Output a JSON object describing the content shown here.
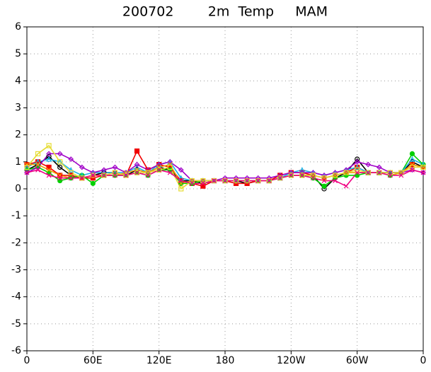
{
  "chart_data": {
    "type": "line",
    "title": "200702        2m  Temp     MAM",
    "x": [
      0,
      10,
      20,
      30,
      40,
      50,
      60,
      70,
      80,
      90,
      100,
      110,
      120,
      130,
      140,
      150,
      160,
      170,
      180,
      190,
      200,
      210,
      220,
      230,
      240,
      250,
      260,
      270,
      280,
      290,
      300,
      310,
      320,
      330,
      340,
      350,
      360
    ],
    "xlim": [
      0,
      360
    ],
    "xticks": [
      0,
      {
        "value": 60,
        "label": "60E"
      },
      {
        "value": 120,
        "label": "120E"
      },
      180,
      {
        "value": 240,
        "label": "120W"
      },
      {
        "value": 300,
        "label": "60W"
      },
      {
        "value": 360,
        "label": "0"
      }
    ],
    "ylim": [
      -6,
      6
    ],
    "yticks": [
      -6,
      -5,
      -4,
      -3,
      -2,
      -1,
      0,
      1,
      2,
      3,
      4,
      5,
      6
    ],
    "grid": true,
    "series": [
      {
        "color": "#000000",
        "marker": "circle",
        "values": [
          0.7,
          0.9,
          1.2,
          0.8,
          0.5,
          0.4,
          0.5,
          0.6,
          0.6,
          0.5,
          0.7,
          0.6,
          0.8,
          0.7,
          0.3,
          0.3,
          0.2,
          0.3,
          0.3,
          0.3,
          0.2,
          0.3,
          0.3,
          0.4,
          0.5,
          0.5,
          0.5,
          0.0,
          0.4,
          0.6,
          1.1,
          0.6,
          0.6,
          0.6,
          0.6,
          1.0,
          0.8
        ]
      },
      {
        "color": "#f00000",
        "marker": "square",
        "values": [
          0.9,
          1.0,
          0.8,
          0.5,
          0.5,
          0.4,
          0.4,
          0.5,
          0.6,
          0.5,
          1.4,
          0.7,
          0.9,
          0.8,
          0.3,
          0.2,
          0.1,
          0.3,
          0.3,
          0.2,
          0.2,
          0.3,
          0.3,
          0.5,
          0.6,
          0.6,
          0.5,
          0.4,
          0.5,
          0.6,
          0.8,
          0.6,
          0.6,
          0.6,
          0.6,
          0.9,
          0.8
        ]
      },
      {
        "color": "#00d000",
        "marker": "circle",
        "values": [
          0.7,
          0.8,
          0.6,
          0.3,
          0.4,
          0.5,
          0.2,
          0.5,
          0.5,
          0.5,
          0.6,
          0.5,
          0.7,
          0.7,
          0.2,
          0.2,
          0.3,
          0.3,
          0.3,
          0.3,
          0.3,
          0.3,
          0.3,
          0.4,
          0.5,
          0.5,
          0.4,
          0.1,
          0.4,
          0.5,
          0.5,
          0.6,
          0.6,
          0.5,
          0.6,
          1.3,
          0.9
        ]
      },
      {
        "color": "#1eb4e6",
        "marker": "triangle",
        "values": [
          0.8,
          1.0,
          1.1,
          1.0,
          0.7,
          0.5,
          0.6,
          0.6,
          0.6,
          0.6,
          0.8,
          0.6,
          0.9,
          1.0,
          0.4,
          0.3,
          0.3,
          0.3,
          0.3,
          0.3,
          0.3,
          0.3,
          0.3,
          0.4,
          0.6,
          0.7,
          0.6,
          0.5,
          0.6,
          0.7,
          0.8,
          0.6,
          0.6,
          0.6,
          0.6,
          1.1,
          0.9
        ]
      },
      {
        "color": "#a000c8",
        "marker": "diamond",
        "values": [
          0.6,
          0.8,
          1.3,
          1.3,
          1.1,
          0.8,
          0.6,
          0.7,
          0.8,
          0.6,
          0.9,
          0.7,
          0.9,
          1.0,
          0.7,
          0.3,
          0.3,
          0.3,
          0.4,
          0.4,
          0.4,
          0.4,
          0.4,
          0.5,
          0.6,
          0.6,
          0.6,
          0.5,
          0.6,
          0.7,
          1.0,
          0.9,
          0.8,
          0.6,
          0.6,
          0.7,
          0.6
        ]
      },
      {
        "color": "#f0a000",
        "marker": "cross",
        "values": [
          0.9,
          0.9,
          0.7,
          0.5,
          0.4,
          0.4,
          0.5,
          0.5,
          0.5,
          0.6,
          0.7,
          0.6,
          0.8,
          0.9,
          0.2,
          0.3,
          0.3,
          0.3,
          0.3,
          0.3,
          0.3,
          0.3,
          0.3,
          0.4,
          0.5,
          0.5,
          0.5,
          0.4,
          0.5,
          0.6,
          0.6,
          0.6,
          0.6,
          0.5,
          0.6,
          0.9,
          0.8
        ]
      },
      {
        "color": "#e6dc32",
        "marker": "square",
        "values": [
          0.8,
          1.3,
          1.6,
          1.0,
          0.6,
          0.4,
          0.5,
          0.5,
          0.6,
          0.5,
          0.6,
          0.6,
          0.7,
          0.8,
          0.0,
          0.3,
          0.3,
          0.3,
          0.3,
          0.3,
          0.3,
          0.3,
          0.3,
          0.4,
          0.5,
          0.5,
          0.5,
          0.4,
          0.5,
          0.6,
          0.7,
          0.6,
          0.6,
          0.6,
          0.6,
          0.8,
          0.8
        ]
      },
      {
        "color": "#f00082",
        "marker": "cross",
        "values": [
          0.6,
          0.7,
          0.5,
          0.4,
          0.4,
          0.4,
          0.5,
          0.5,
          0.5,
          0.5,
          0.6,
          0.5,
          0.7,
          0.6,
          0.3,
          0.2,
          0.2,
          0.3,
          0.3,
          0.3,
          0.3,
          0.3,
          0.3,
          0.4,
          0.5,
          0.5,
          0.4,
          0.3,
          0.3,
          0.1,
          0.6,
          0.6,
          0.6,
          0.5,
          0.5,
          0.7,
          0.6
        ]
      }
    ]
  }
}
